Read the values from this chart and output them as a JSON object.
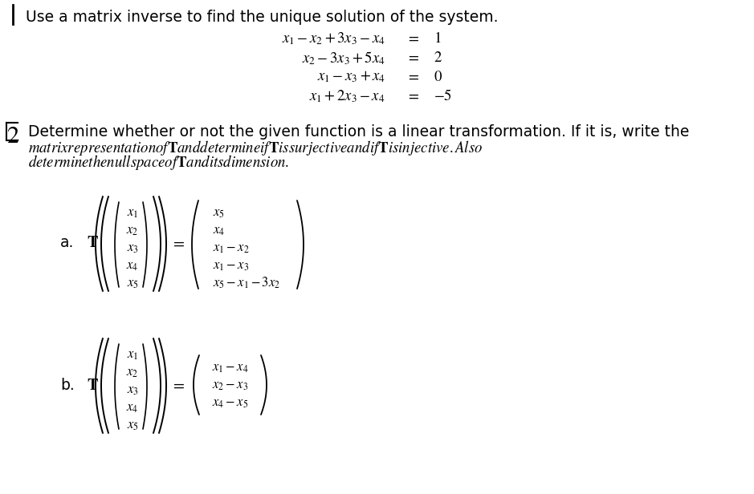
{
  "bg_color": "#ffffff",
  "text_color": "#000000",
  "figsize": [
    9.39,
    6.16
  ],
  "dpi": 100,
  "problem1_title": "Use a matrix inverse to find the unique solution of the system.",
  "eq_lhs": [
    "x_1 - x_2 + 3x_3 - x_4",
    "x_2 - 3x_3 + 5x_4",
    "x_1 - x_3 + x_4",
    "x_1 + 2x_3 - x_4"
  ],
  "eq_rhs": [
    "1",
    "2",
    "0",
    "-5"
  ],
  "p2_line1": "Determine whether or not the given function is a linear transformation. If it is, write the",
  "p2_line2": "matrix representation of \\mathbf{T} and determine if \\mathbf{T} is surjective and if \\mathbf{T} is injective. Also",
  "p2_line3": "determine the null space of \\mathbf{T} and its dimension.",
  "part_a_in": [
    "x_1",
    "x_2",
    "x_3",
    "x_4",
    "x_5"
  ],
  "part_a_out": [
    "x_5",
    "x_4",
    "x_1 - x_2",
    "x_1 - x_3",
    "x_5 - x_1 - 3x_2"
  ],
  "part_b_in": [
    "x_1",
    "x_2",
    "x_3",
    "x_4",
    "x_5"
  ],
  "part_b_out": [
    "x_1 - x_4",
    "x_2 - x_3",
    "x_4 - x_5"
  ]
}
